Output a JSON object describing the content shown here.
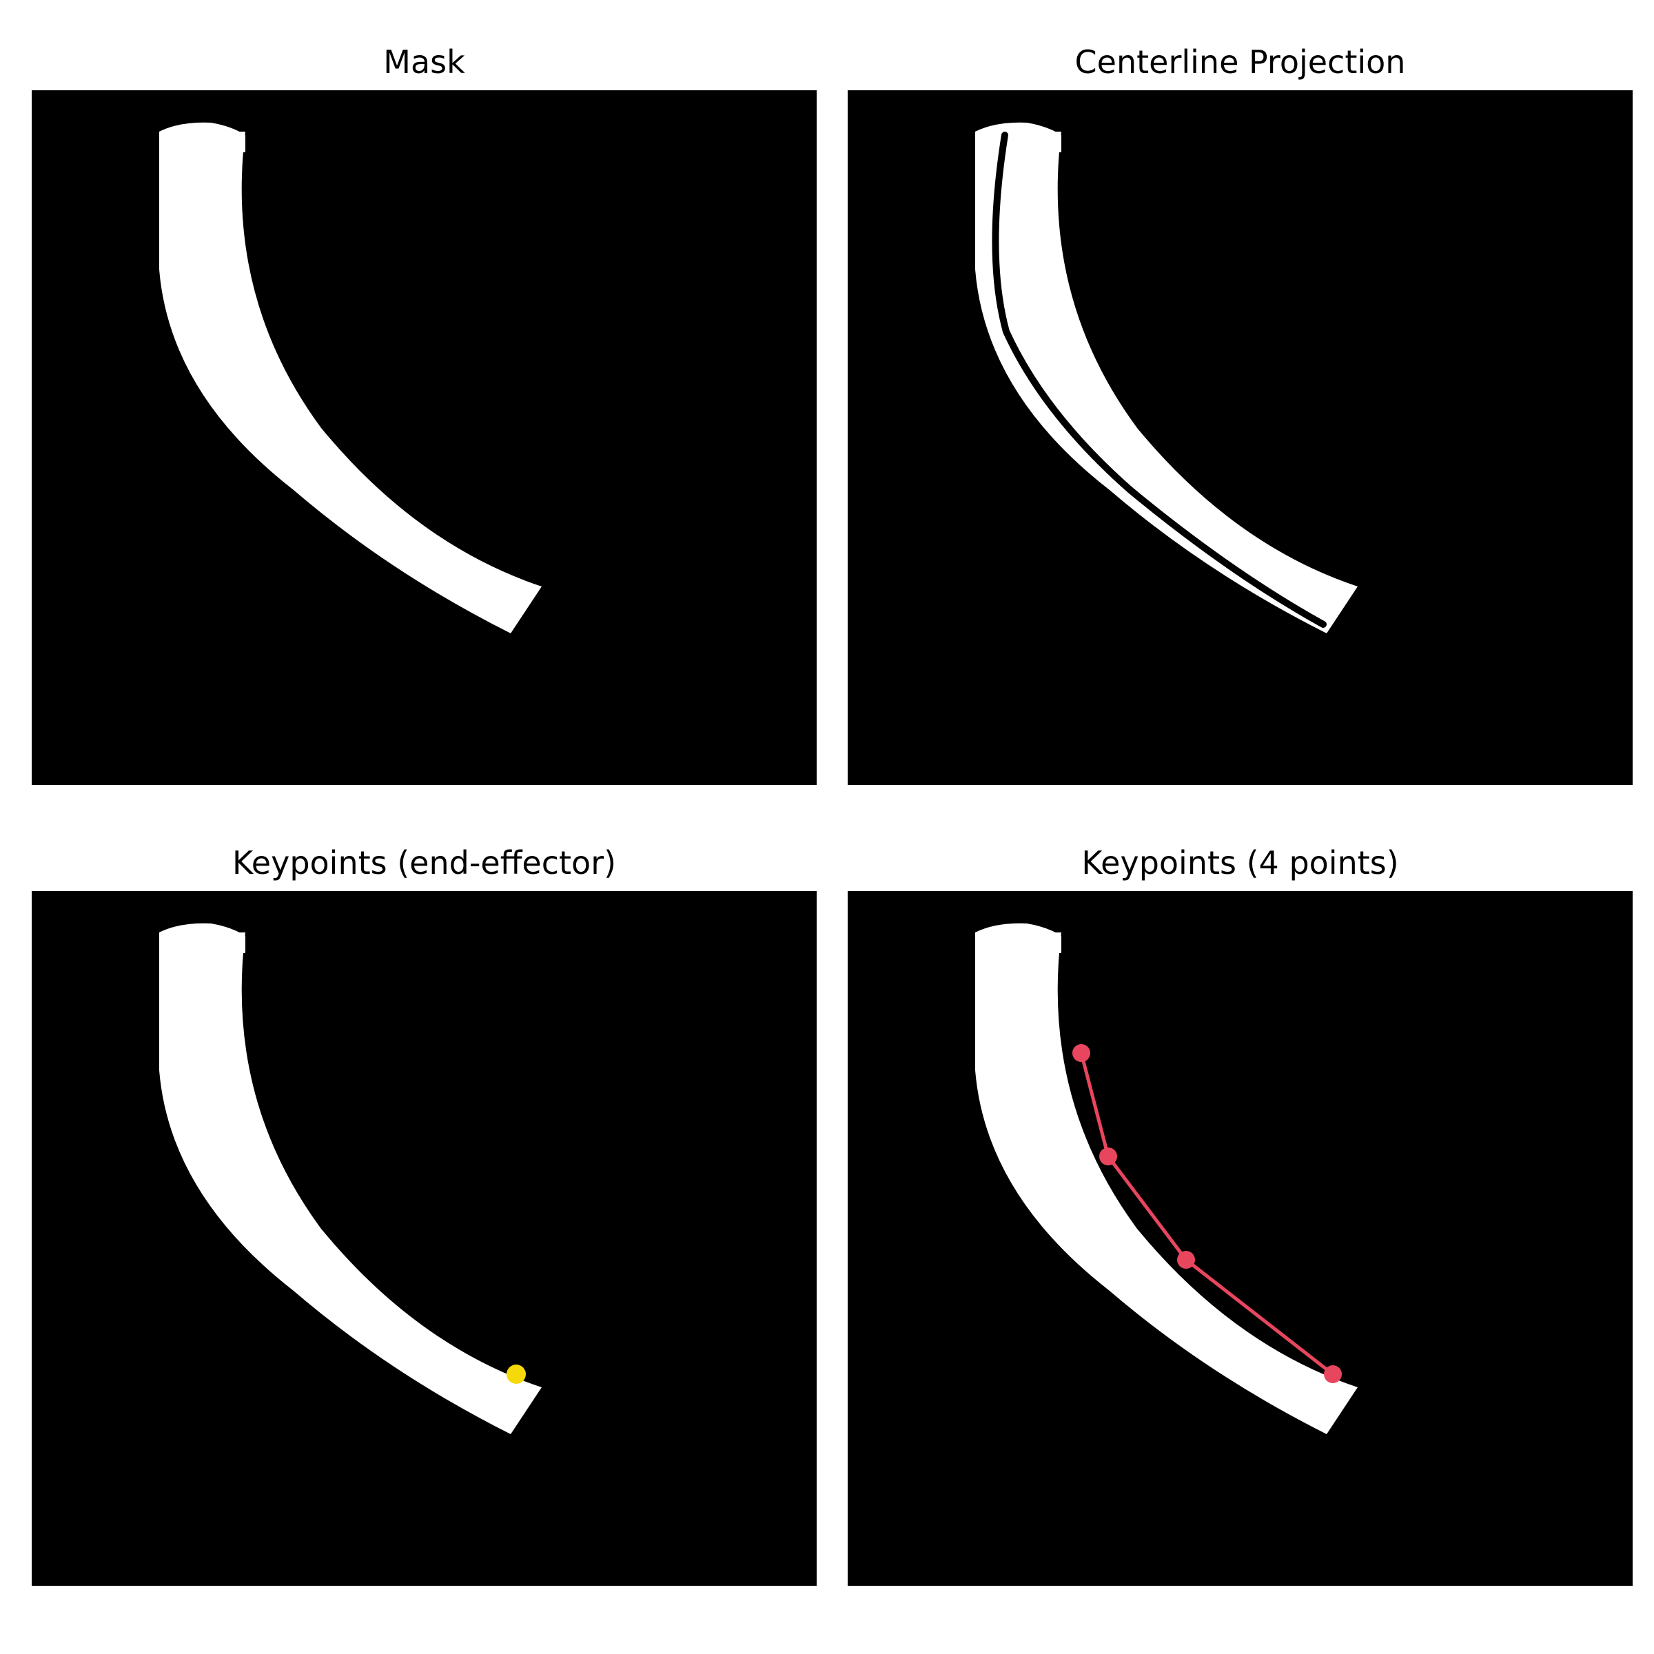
{
  "panels": [
    {
      "title": "Mask",
      "content": "mask"
    },
    {
      "title": "Centerline Projection",
      "content": "centerline"
    },
    {
      "title": "Keypoints (end-effector)",
      "content": "end-effector",
      "marker_color": "#f5d90a"
    },
    {
      "title": "Keypoints (4 points)",
      "content": "keypoints",
      "keypoint_color": "#e8465f",
      "keypoint_count": 4
    }
  ],
  "colors": {
    "background": "#000000",
    "mask": "#ffffff"
  }
}
